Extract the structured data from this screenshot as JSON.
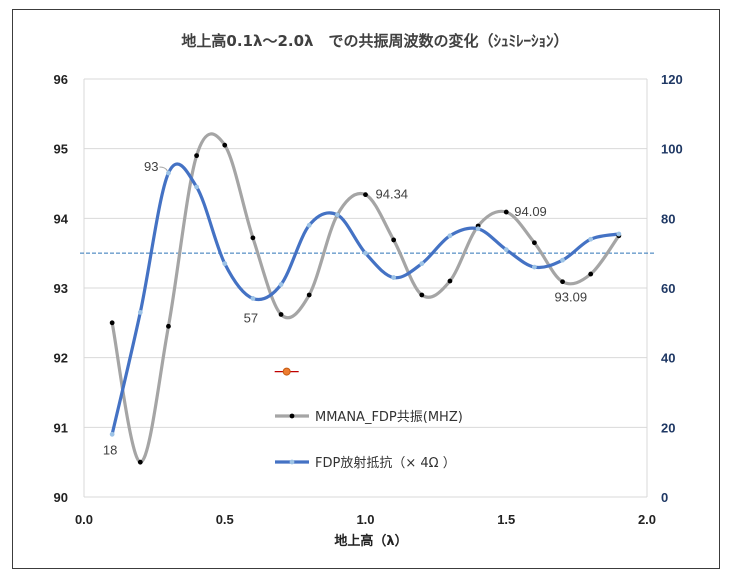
{
  "chart_data": {
    "type": "line",
    "title": "地上高0.1λ～2.0λ　での共振周波数の変化（ｼｭﾐﾚｰｼｮﾝ）",
    "xlabel": "地上高（λ）",
    "xlim": [
      0.0,
      2.0
    ],
    "ylim_left": [
      90,
      96
    ],
    "ylim_right": [
      0,
      120
    ],
    "x_ticks": [
      "0.0",
      "0.5",
      "1.0",
      "1.5",
      "2.0"
    ],
    "y_left_ticks": [
      "90",
      "91",
      "92",
      "93",
      "94",
      "95",
      "96"
    ],
    "y_right_ticks": [
      "0",
      "20",
      "40",
      "60",
      "80",
      "100",
      "120"
    ],
    "grid": "horizontal",
    "reference_line": {
      "axis": "right",
      "value": 70,
      "color": "#2e75b6"
    },
    "series": [
      {
        "name": "MMANA_FDP共振(MHZ)",
        "axis": "left",
        "color": "#a5a5a5",
        "marker_color": "#000000",
        "x": [
          0.1,
          0.2,
          0.3,
          0.4,
          0.5,
          0.6,
          0.7,
          0.8,
          0.9,
          1.0,
          1.1,
          1.2,
          1.3,
          1.4,
          1.5,
          1.6,
          1.7,
          1.8,
          1.9
        ],
        "values": [
          92.5,
          90.5,
          92.45,
          94.9,
          95.05,
          93.72,
          92.62,
          92.9,
          94.05,
          94.34,
          93.69,
          92.9,
          93.1,
          93.89,
          94.09,
          93.65,
          93.09,
          93.2,
          93.75
        ]
      },
      {
        "name": "FDP放射抵抗（× 4Ω ）",
        "axis": "right",
        "color": "#4472c4",
        "marker_color": "#9dc3e6",
        "x": [
          0.1,
          0.2,
          0.3,
          0.4,
          0.5,
          0.6,
          0.7,
          0.8,
          0.9,
          1.0,
          1.1,
          1.2,
          1.3,
          1.4,
          1.5,
          1.6,
          1.7,
          1.8,
          1.9
        ],
        "values": [
          18,
          53,
          93,
          89,
          67,
          57,
          61,
          78,
          81,
          70,
          63,
          67,
          75,
          77,
          71,
          66,
          68,
          74,
          75.5
        ]
      }
    ],
    "annotations": [
      {
        "series": 1,
        "index": 2,
        "text": "93"
      },
      {
        "series": 1,
        "index": 0,
        "text": "18"
      },
      {
        "series": 1,
        "index": 5,
        "text": "57"
      },
      {
        "series": 0,
        "index": 9,
        "text": "94.34"
      },
      {
        "series": 0,
        "index": 14,
        "text": "94.09"
      },
      {
        "series": 0,
        "index": 16,
        "text": "93.09"
      }
    ],
    "stray_marker": {
      "x": 0.72,
      "y_left": 91.8,
      "color": "#ed7d31"
    }
  }
}
